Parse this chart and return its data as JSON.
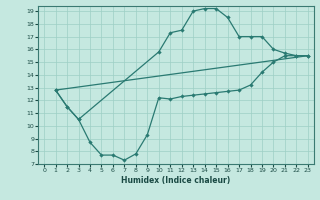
{
  "xlabel": "Humidex (Indice chaleur)",
  "bg_color": "#c5e8e0",
  "grid_color": "#9ecfc5",
  "line_color": "#2a7a72",
  "xlim": [
    -0.5,
    23.5
  ],
  "ylim": [
    7,
    19.4
  ],
  "xticks": [
    0,
    1,
    2,
    3,
    4,
    5,
    6,
    7,
    8,
    9,
    10,
    11,
    12,
    13,
    14,
    15,
    16,
    17,
    18,
    19,
    20,
    21,
    22,
    23
  ],
  "yticks": [
    7,
    8,
    9,
    10,
    11,
    12,
    13,
    14,
    15,
    16,
    17,
    18,
    19
  ],
  "line1_x": [
    1,
    2,
    3,
    4,
    5,
    6,
    7,
    8,
    9,
    10,
    11,
    12,
    13,
    14,
    15,
    16,
    17,
    18,
    19,
    20,
    21,
    22,
    23
  ],
  "line1_y": [
    12.8,
    11.5,
    10.5,
    8.7,
    7.7,
    7.7,
    7.3,
    7.8,
    9.3,
    12.2,
    12.1,
    12.3,
    12.4,
    12.5,
    12.6,
    12.7,
    12.8,
    13.2,
    14.2,
    15.0,
    15.5,
    15.5,
    15.5
  ],
  "line2_x": [
    1,
    2,
    3,
    10,
    11,
    12,
    13,
    14,
    15,
    16,
    17,
    18,
    19,
    20,
    21,
    22,
    23
  ],
  "line2_y": [
    12.8,
    11.5,
    10.5,
    15.8,
    17.3,
    17.5,
    19.0,
    19.2,
    19.2,
    18.5,
    17.0,
    17.0,
    17.0,
    16.0,
    15.7,
    15.5,
    15.5
  ],
  "line3_x": [
    1,
    23
  ],
  "line3_y": [
    12.8,
    15.5
  ]
}
